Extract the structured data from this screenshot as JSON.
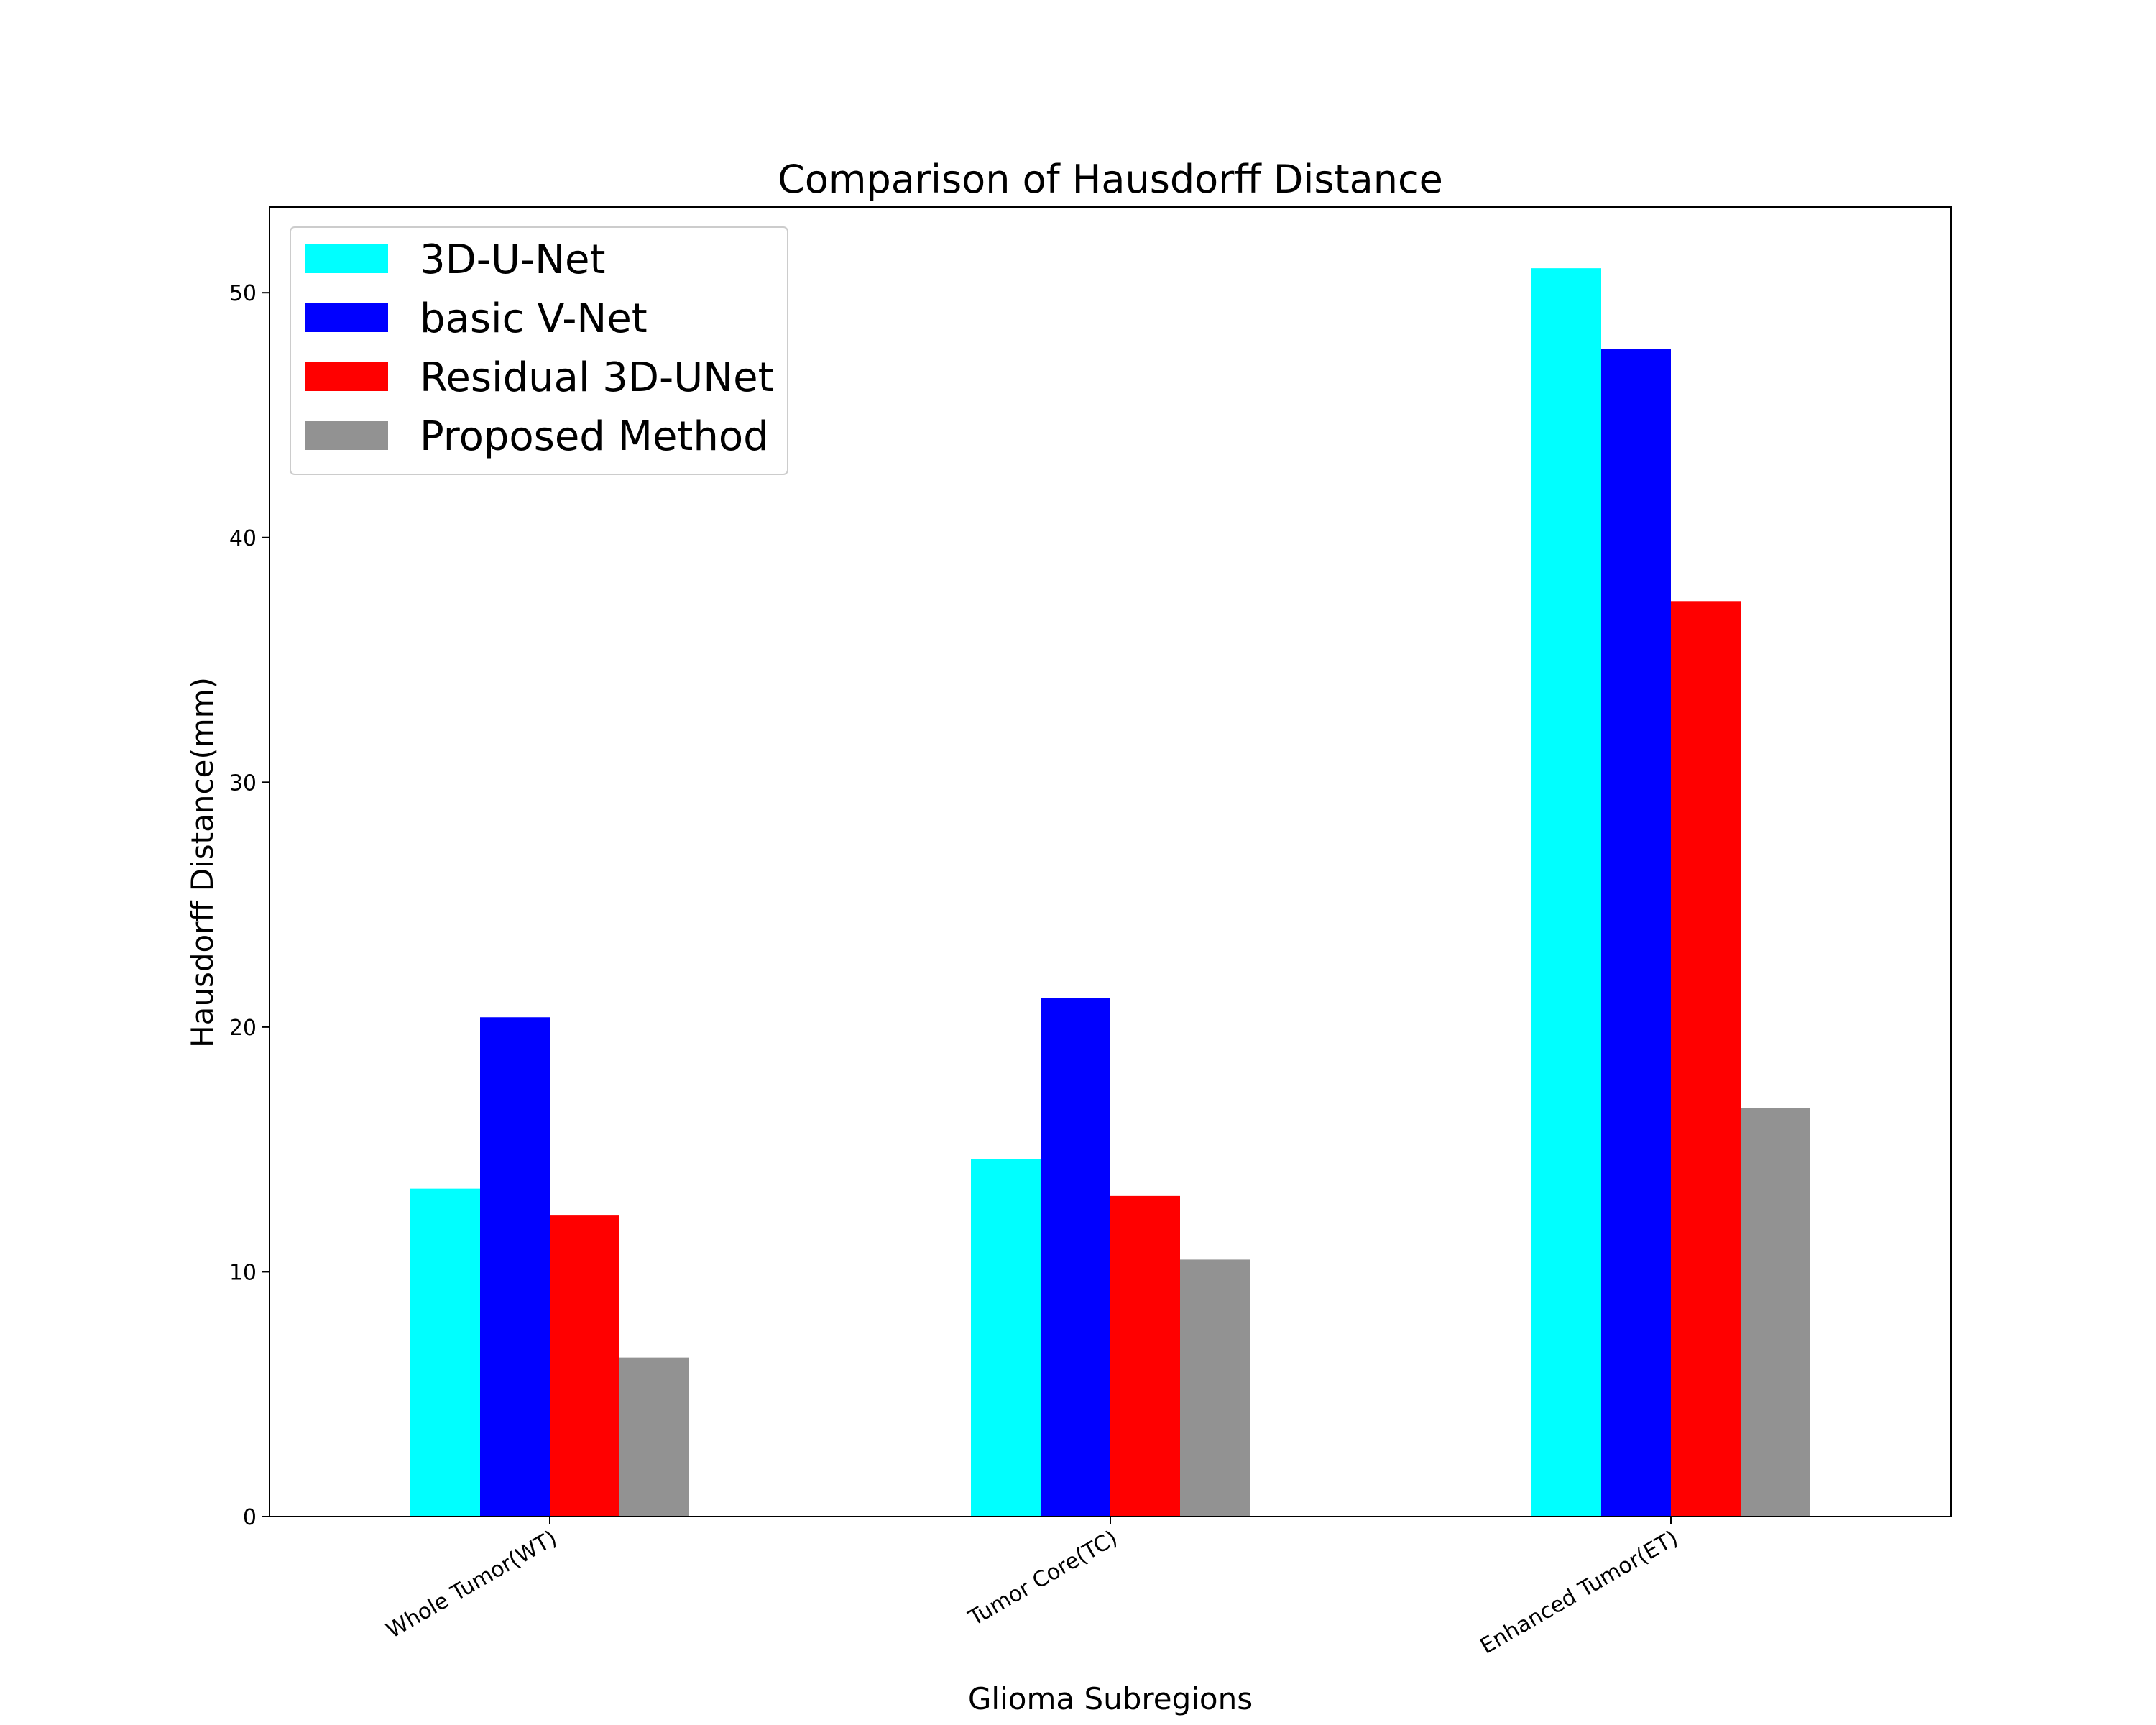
{
  "chart_data": {
    "type": "bar",
    "title": "Comparison of Hausdorff Distance",
    "xlabel": "Glioma Subregions",
    "ylabel": "Hausdorff Distance(mm)",
    "categories": [
      "Whole Tumor(WT)",
      "Tumor Core(TC)",
      "Enhanced Tumor(ET)"
    ],
    "series": [
      {
        "name": "3D-U-Net",
        "color": "#00ffff",
        "values": [
          13.4,
          14.6,
          51.0
        ]
      },
      {
        "name": "basic V-Net",
        "color": "#0000ff",
        "values": [
          20.4,
          21.2,
          47.7
        ]
      },
      {
        "name": "Residual 3D-UNet",
        "color": "#ff0000",
        "values": [
          12.3,
          13.1,
          37.4
        ]
      },
      {
        "name": "Proposed Method",
        "color": "#929292",
        "values": [
          6.5,
          10.5,
          16.7
        ]
      }
    ],
    "ylim": [
      0,
      53.5
    ],
    "yticks": [
      0,
      10,
      20,
      30,
      40,
      50
    ],
    "legend_position": "upper-left",
    "grid": false
  }
}
